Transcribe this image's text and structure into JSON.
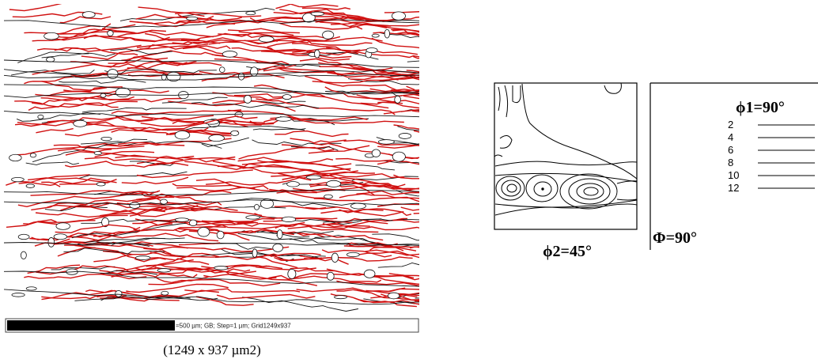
{
  "map": {
    "scale_bar": "=500 µm; GB; Step=1 µm; Grid1249x937",
    "caption": "(1249 x 937 µm2)"
  },
  "odf": {
    "section_label": "ϕ2=45°",
    "phi1_label": "ϕ1=90°",
    "Phi_label": "Φ=90°",
    "levels": [
      "2",
      "4",
      "6",
      "8",
      "10",
      "12"
    ]
  }
}
